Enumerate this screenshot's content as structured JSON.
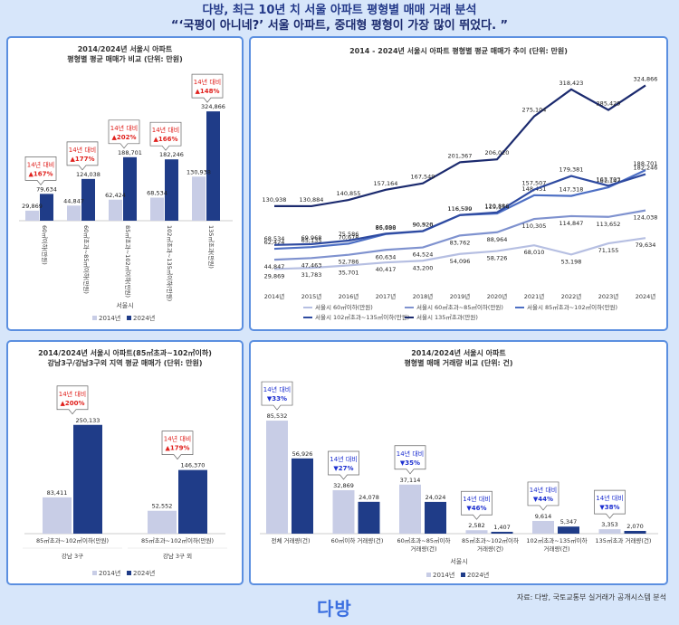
{
  "header": {
    "line1": "다방, 최근 10년 치 서울 아파트 평형별 매매 거래 분석",
    "line2": "“‘국평이 아니네?’ 서울 아파트, 중대형 평형이 가장 많이 뛰었다. ”"
  },
  "source": "자료: 다방, 국토교통부 실거래가 공개시스템 분석",
  "logo": "다방",
  "colors": {
    "y2014": "#c8cde6",
    "y2024": "#1f3c88",
    "up": "#e0201c",
    "down": "#1c2fd0",
    "panel_border": "#5b8fe0",
    "bg": "#d7e6fa"
  },
  "chart_data": [
    {
      "id": "price_by_size",
      "type": "bar",
      "title": [
        "2014/2024년 서울시 아파트",
        "평형별 평균 매매가 비교 (단위: 만원)"
      ],
      "xlabel": "서울시",
      "categories": [
        "60㎡이하(만원)",
        "60㎡초과~85㎡이하(만원)",
        "85㎡초과~102㎡이하(만원)",
        "102㎡초과~135㎡이하(만원)",
        "135㎡초과(만원)"
      ],
      "series": [
        {
          "name": "2014년",
          "values": [
            29869,
            44847,
            62424,
            68534,
            130938
          ],
          "labels": [
            "29,869",
            "44,847",
            "62,424",
            "68,534",
            "130,938"
          ]
        },
        {
          "name": "2024년",
          "values": [
            79634,
            124038,
            188701,
            182246,
            324866
          ],
          "labels": [
            "79,634",
            "124,038",
            "188,701",
            "182,246",
            "324,866"
          ]
        }
      ],
      "annotations": [
        {
          "head": "14년 대비",
          "change": "▲167%"
        },
        {
          "head": "14년 대비",
          "change": "▲177%"
        },
        {
          "head": "14년 대비",
          "change": "▲202%"
        },
        {
          "head": "14년 대비",
          "change": "▲166%"
        },
        {
          "head": "14년 대비",
          "change": "▲148%"
        }
      ],
      "ylim": [
        0,
        340000
      ],
      "legend": "bottom"
    },
    {
      "id": "price_trend",
      "type": "line",
      "title": [
        "2014 - 2024년 서울시 아파트 평형별 평균 매매가 추이 (단위: 만원)"
      ],
      "x": [
        "2014년",
        "2015년",
        "2016년",
        "2017년",
        "2018년",
        "2019년",
        "2020년",
        "2021년",
        "2022년",
        "2023년",
        "2024년"
      ],
      "series": [
        {
          "name": "서울시 60㎡이하(만원)",
          "color": "#b6bfe2",
          "values": [
            29869,
            31783,
            35701,
            40417,
            43200,
            54096,
            58726,
            68010,
            53198,
            71155,
            79634
          ],
          "labels": [
            "29,869",
            "31,783",
            "35,701",
            "40,417",
            "43,200",
            "54,096",
            "58,726",
            "68,010",
            "53,198",
            "71,155",
            "79,634"
          ]
        },
        {
          "name": "서울시 60㎡초과~85㎡이하(만원)",
          "color": "#7f92cf",
          "values": [
            44847,
            47463,
            52786,
            60634,
            64524,
            83762,
            88964,
            110305,
            114847,
            113652,
            124038
          ],
          "labels": [
            "44,847",
            "47,463",
            "52,786",
            "60,634",
            "64,524",
            "83,762",
            "88,964",
            "110,305",
            "114,847",
            "113,652",
            "124,038"
          ]
        },
        {
          "name": "서울시 85㎡초과~102㎡이하(만원)",
          "color": "#4d6fc4",
          "values": [
            62424,
            65135,
            70678,
            85988,
            90526,
            116509,
            119154,
            148451,
            147318,
            161147,
            188701
          ],
          "labels": [
            "62,424",
            "65,135",
            "70,678",
            "85,988",
            "90,526",
            "116,509",
            "119,154",
            "148,451",
            "147,318",
            "161,147",
            "188,701"
          ]
        },
        {
          "name": "서울시 102㎡초과~135㎡이하(만원)",
          "color": "#2e4aa0",
          "values": [
            68534,
            69968,
            75586,
            86690,
            90920,
            116570,
            120886,
            157507,
            179381,
            163703,
            182246
          ],
          "labels": [
            "68,534",
            "69,968",
            "75,586",
            "86,690",
            "90,920",
            "116,570",
            "120,886",
            "157,507",
            "179,381",
            "163,703",
            "182,246"
          ]
        },
        {
          "name": "서울시 135㎡초과(만원)",
          "color": "#1b2a6e",
          "values": [
            130938,
            130884,
            140855,
            157164,
            167549,
            201367,
            206020,
            275104,
            318423,
            285429,
            324866
          ],
          "labels": [
            "130,938",
            "130,884",
            "140,855",
            "157,164",
            "167,549",
            "201,367",
            "206,020",
            "275,104",
            "318,423",
            "285,429",
            "324,866"
          ]
        }
      ],
      "ylim": [
        0,
        340000
      ],
      "legend": "bottom"
    },
    {
      "id": "gangnam",
      "type": "bar",
      "title": [
        "2014/2024년 서울시 아파트(85㎡초과~102㎡이하)",
        "강남3구/강남3구외 지역 평균 매매가 (단위: 만원)"
      ],
      "categories": [
        "85㎡초과~102㎡이하(만원)",
        "85㎡초과~102㎡이하(만원)"
      ],
      "groups": [
        "강남 3구",
        "강남 3구 외"
      ],
      "series": [
        {
          "name": "2014년",
          "values": [
            83411,
            52552
          ],
          "labels": [
            "83,411",
            "52,552"
          ]
        },
        {
          "name": "2024년",
          "values": [
            250133,
            146370
          ],
          "labels": [
            "250,133",
            "146,370"
          ]
        }
      ],
      "annotations": [
        {
          "head": "14년 대비",
          "change": "▲200%"
        },
        {
          "head": "14년 대비",
          "change": "▲179%"
        }
      ],
      "ylim": [
        0,
        270000
      ],
      "legend": "bottom"
    },
    {
      "id": "volume",
      "type": "bar",
      "title": [
        "2014/2024년 서울시 아파트",
        "평형별 매매 거래량 비교 (단위: 건)"
      ],
      "xlabel": "서울시",
      "categories": [
        "전체 거래량(건)",
        "60㎡이하 거래량(건)",
        "60㎡초과~85㎡이하 거래량(건)",
        "85㎡초과~102㎡이하 거래량(건)",
        "102㎡초과~135㎡이하 거래량(건)",
        "135㎡초과 거래량(건)"
      ],
      "series": [
        {
          "name": "2014년",
          "values": [
            85532,
            32869,
            37114,
            2582,
            9614,
            3353
          ],
          "labels": [
            "85,532",
            "32,869",
            "37,114",
            "2,582",
            "9,614",
            "3,353"
          ]
        },
        {
          "name": "2024년",
          "values": [
            56926,
            24078,
            24024,
            1407,
            5347,
            2070
          ],
          "labels": [
            "56,926",
            "24,078",
            "24,024",
            "1,407",
            "5,347",
            "2,070"
          ]
        }
      ],
      "annotations": [
        {
          "head": "14년 대비",
          "change": "▼33%"
        },
        {
          "head": "14년 대비",
          "change": "▼27%"
        },
        {
          "head": "14년 대비",
          "change": "▼35%"
        },
        {
          "head": "14년 대비",
          "change": "▼46%"
        },
        {
          "head": "14년 대비",
          "change": "▼44%"
        },
        {
          "head": "14년 대비",
          "change": "▼38%"
        }
      ],
      "ylim": [
        0,
        92000
      ],
      "legend": "bottom"
    }
  ]
}
